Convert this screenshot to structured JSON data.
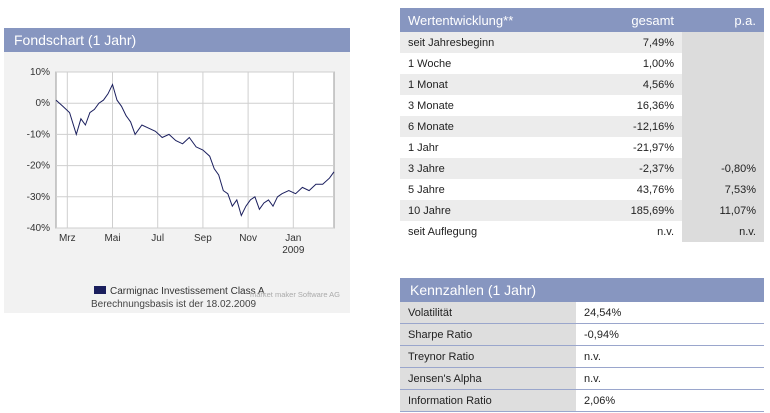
{
  "chart_panel": {
    "title": "Fondschart (1 Jahr)",
    "legend": "Carmignac Investissement Class A",
    "note": "Berechnungsbasis ist der 18.02.2009",
    "credit": "market maker Software AG"
  },
  "chart_data": {
    "type": "line",
    "title": "",
    "xlabel": "",
    "ylabel": "",
    "ylim": [
      -40,
      10
    ],
    "yticks": [
      "10%",
      "0%",
      "-10%",
      "-20%",
      "-30%",
      "-40%"
    ],
    "ytick_values": [
      10,
      0,
      -10,
      -20,
      -30,
      -40
    ],
    "xticks": [
      "Mrz",
      "Mai",
      "Jul",
      "Sep",
      "Nov",
      "Jan"
    ],
    "xticks_sub": [
      "",
      "",
      "",
      "",
      "",
      "2009"
    ],
    "xtick_positions": [
      0.5,
      2.5,
      4.5,
      6.5,
      8.5,
      10.5
    ],
    "xlim": [
      0,
      12.3
    ],
    "grid": true,
    "color": "#1b1f5e",
    "series": [
      {
        "name": "Carmignac Investissement Class A",
        "x": [
          0,
          0.3,
          0.6,
          0.9,
          1.1,
          1.3,
          1.5,
          1.7,
          1.9,
          2.1,
          2.3,
          2.5,
          2.7,
          2.9,
          3.1,
          3.3,
          3.5,
          3.8,
          4.1,
          4.4,
          4.7,
          5.0,
          5.3,
          5.6,
          5.9,
          6.2,
          6.5,
          6.8,
          7.0,
          7.2,
          7.4,
          7.6,
          7.8,
          8.0,
          8.2,
          8.4,
          8.6,
          8.8,
          9.0,
          9.2,
          9.4,
          9.6,
          9.8,
          10.0,
          10.3,
          10.6,
          10.9,
          11.2,
          11.5,
          11.8,
          12.1,
          12.3
        ],
        "values": [
          1,
          -1,
          -3,
          -10,
          -5,
          -7,
          -3,
          -2,
          0,
          1,
          3,
          6,
          1,
          -1,
          -4,
          -6,
          -10,
          -7,
          -8,
          -9,
          -11,
          -10,
          -12,
          -13,
          -11,
          -14,
          -15,
          -17,
          -21,
          -23,
          -28,
          -29,
          -33,
          -31,
          -36,
          -33,
          -31,
          -30,
          -34,
          -32,
          -31,
          -33,
          -30,
          -29,
          -28,
          -29,
          -27,
          -28,
          -26,
          -26,
          -24,
          -22
        ]
      }
    ]
  },
  "returns": {
    "headers": {
      "label": "Wertentwicklung**",
      "total": "gesamt",
      "pa": "p.a."
    },
    "rows": [
      {
        "label": "seit Jahresbeginn",
        "total": "7,49%",
        "pa": ""
      },
      {
        "label": "1 Woche",
        "total": "1,00%",
        "pa": ""
      },
      {
        "label": "1 Monat",
        "total": "4,56%",
        "pa": ""
      },
      {
        "label": "3 Monate",
        "total": "16,36%",
        "pa": ""
      },
      {
        "label": "6 Monate",
        "total": "-12,16%",
        "pa": ""
      },
      {
        "label": "1 Jahr",
        "total": "-21,97%",
        "pa": ""
      },
      {
        "label": "3 Jahre",
        "total": "-2,37%",
        "pa": "-0,80%"
      },
      {
        "label": "5 Jahre",
        "total": "43,76%",
        "pa": "7,53%"
      },
      {
        "label": "10 Jahre",
        "total": "185,69%",
        "pa": "11,07%"
      },
      {
        "label": "seit Auflegung",
        "total": "n.v.",
        "pa": "n.v."
      }
    ]
  },
  "kpis": {
    "title": "Kennzahlen (1 Jahr)",
    "rows": [
      {
        "label": "Volatilität",
        "value": "24,54%"
      },
      {
        "label": "Sharpe Ratio",
        "value": "-0,94%"
      },
      {
        "label": "Treynor Ratio",
        "value": "n.v."
      },
      {
        "label": "Jensen's Alpha",
        "value": "n.v."
      },
      {
        "label": "Information Ratio",
        "value": "2,06%"
      }
    ]
  }
}
